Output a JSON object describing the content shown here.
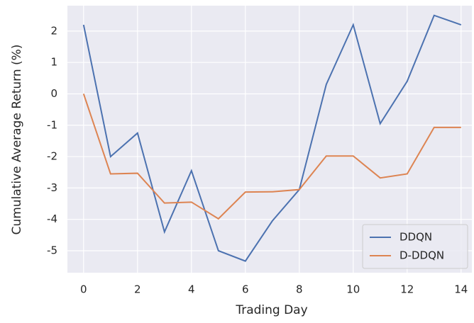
{
  "chart_data": {
    "type": "line",
    "xlabel": "Trading Day",
    "ylabel": "Cumulative Average Return (%)",
    "x": [
      0,
      1,
      2,
      3,
      4,
      5,
      6,
      7,
      8,
      9,
      10,
      11,
      12,
      13,
      14
    ],
    "series": [
      {
        "name": "DDQN",
        "color": "#4c72b0",
        "values": [
          2.2,
          -2.0,
          -1.25,
          -4.4,
          -2.45,
          -5.0,
          -5.33,
          -4.05,
          -3.05,
          0.3,
          2.2,
          -0.95,
          0.4,
          2.5,
          2.2
        ]
      },
      {
        "name": "D-DDQN",
        "color": "#dd8452",
        "values": [
          0,
          -2.55,
          -2.53,
          -3.48,
          -3.45,
          -3.98,
          -3.13,
          -3.12,
          -3.05,
          -1.98,
          -1.98,
          -2.68,
          -2.55,
          -1.07,
          -1.07
        ]
      }
    ],
    "xlim": [
      -0.6,
      14.4
    ],
    "xticks": [
      0,
      2,
      4,
      6,
      8,
      10,
      12,
      14
    ],
    "ylim": [
      -5.7,
      2.81
    ],
    "yticks": [
      -5,
      -4,
      -3,
      -2,
      -1,
      0,
      1,
      2
    ],
    "grid": true,
    "legend": "lower right"
  }
}
